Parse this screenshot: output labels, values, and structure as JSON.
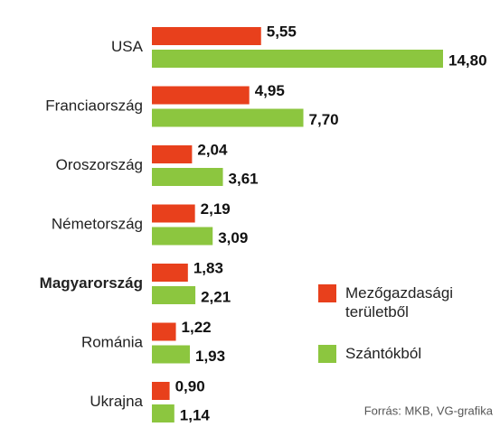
{
  "chart_data": {
    "type": "bar",
    "orientation": "horizontal",
    "categories": [
      "USA",
      "Franciaország",
      "Oroszország",
      "Németország",
      "Magyarország",
      "Románia",
      "Ukrajna"
    ],
    "series": [
      {
        "name": "Mezőgazdasági területből",
        "color": "#e8401c",
        "values": [
          5.55,
          4.95,
          2.04,
          2.19,
          1.83,
          1.22,
          0.9
        ],
        "value_labels": [
          "5,55",
          "4,95",
          "2,04",
          "2,19",
          "1,83",
          "1,22",
          "0,90"
        ]
      },
      {
        "name": "Szántókból",
        "color": "#8cc63f",
        "values": [
          14.8,
          7.7,
          3.61,
          3.09,
          2.21,
          1.93,
          1.14
        ],
        "value_labels": [
          "14,80",
          "7,70",
          "3,61",
          "3,09",
          "2,21",
          "1,93",
          "1,14"
        ]
      }
    ],
    "source": "Forrás: MKB, VG-grafika",
    "legend": "lower right"
  }
}
